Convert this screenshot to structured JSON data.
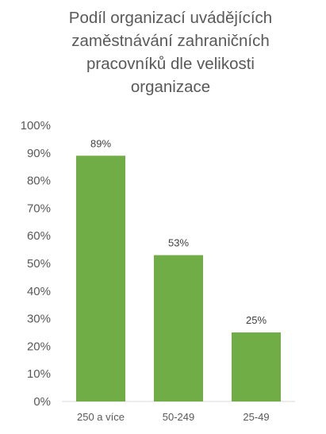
{
  "chart_data": {
    "type": "bar",
    "title": "Podíl organizací uvádějících zaměstnávání zahraničních pracovníků dle velikosti organizace",
    "title_lines": [
      "Podíl organizací uvádějících",
      "zaměstnávání zahraničních",
      "pracovníků dle velikosti",
      "organizace"
    ],
    "categories": [
      "250 a více",
      "50-249",
      "25-49"
    ],
    "values": [
      89,
      53,
      25
    ],
    "data_labels": [
      "89%",
      "53%",
      "25%"
    ],
    "xlabel": "",
    "ylabel": "",
    "ylim": [
      0,
      100
    ],
    "y_ticks": [
      0,
      10,
      20,
      30,
      40,
      50,
      60,
      70,
      80,
      90,
      100
    ],
    "y_tick_labels": [
      "0%",
      "10%",
      "20%",
      "30%",
      "40%",
      "50%",
      "60%",
      "70%",
      "80%",
      "90%",
      "100%"
    ],
    "grid": false,
    "legend": "none",
    "bar_color": "#70ad47"
  }
}
